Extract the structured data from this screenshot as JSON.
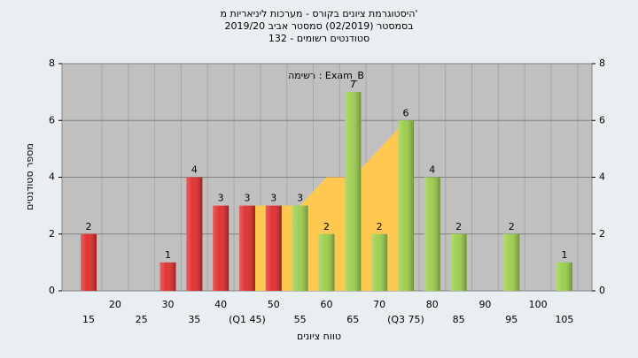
{
  "chart_data": {
    "type": "bar",
    "title": "היסטוגרמת ציונים בקורס - מערכות ליניאריות מ'",
    "subtitle": "בסמסטר  (02/2019)  סמסטר אביב 2019/20",
    "subtitle2": "סטודנטים רשומים - 132",
    "annotation": "רשימה : Exam_B",
    "x_label": "טווח ציונים",
    "y_label": "מספר סטודנטים",
    "categories": [
      "15",
      "20",
      "25",
      "30",
      "35",
      "40",
      "(Q1 45)",
      "50",
      "55",
      "60",
      "65",
      "70",
      "(Q3 75)",
      "80",
      "85",
      "90",
      "95",
      "100",
      "105"
    ],
    "series": [
      {
        "values": [
          2,
          0,
          0,
          1,
          4,
          3,
          3,
          3,
          3,
          2,
          7,
          2,
          6,
          4,
          2,
          0,
          2,
          0,
          1
        ],
        "colors": [
          "#e02a2a",
          "#e02a2a",
          "#e02a2a",
          "#e02a2a",
          "#e02a2a",
          "#e02a2a",
          "#e02a2a",
          "#e02a2a",
          "#9acd4a",
          "#9acd4a",
          "#9acd4a",
          "#9acd4a",
          "#9acd4a",
          "#9acd4a",
          "#9acd4a",
          "#9acd4a",
          "#9acd4a",
          "#9acd4a",
          "#9acd4a"
        ]
      }
    ],
    "area": {
      "color": "#ffc850",
      "x": [
        45,
        55,
        60,
        65,
        75
      ],
      "values": [
        3,
        3,
        4,
        4,
        6
      ]
    },
    "ylim": [
      0,
      8
    ],
    "yticks": [
      0,
      2,
      4,
      6,
      8
    ],
    "y2lim": [
      0,
      8
    ],
    "y2ticks": [
      0,
      2,
      4,
      6,
      8
    ],
    "grid": true
  }
}
